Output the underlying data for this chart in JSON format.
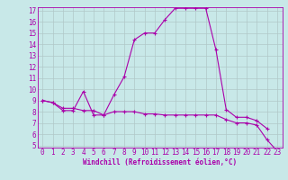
{
  "xlabel": "Windchill (Refroidissement éolien,°C)",
  "x": [
    0,
    1,
    2,
    3,
    4,
    5,
    6,
    7,
    8,
    9,
    10,
    11,
    12,
    13,
    14,
    15,
    16,
    17,
    18,
    19,
    20,
    21,
    22,
    23
  ],
  "curve1": [
    9.0,
    8.8,
    8.1,
    8.1,
    9.8,
    7.7,
    7.7,
    9.5,
    11.1,
    14.4,
    15.0,
    15.0,
    16.2,
    17.2,
    17.2,
    17.2,
    17.2,
    13.5,
    8.2,
    7.5,
    7.5,
    7.2,
    6.5,
    null
  ],
  "curve2": [
    9.0,
    8.8,
    8.3,
    8.3,
    8.1,
    8.1,
    7.7,
    8.0,
    8.0,
    8.0,
    7.8,
    7.8,
    7.7,
    7.7,
    7.7,
    7.7,
    7.7,
    7.7,
    7.3,
    7.0,
    7.0,
    6.8,
    5.5,
    4.5
  ],
  "color": "#aa00aa",
  "bg_color": "#c8e8e8",
  "grid_color": "#b0c8c8",
  "ylim": [
    4.8,
    17.3
  ],
  "xlim": [
    -0.5,
    23.5
  ],
  "yticks": [
    5,
    6,
    7,
    8,
    9,
    10,
    11,
    12,
    13,
    14,
    15,
    16,
    17
  ],
  "xticks": [
    0,
    1,
    2,
    3,
    4,
    5,
    6,
    7,
    8,
    9,
    10,
    11,
    12,
    13,
    14,
    15,
    16,
    17,
    18,
    19,
    20,
    21,
    22,
    23
  ],
  "tick_fontsize": 5.5,
  "xlabel_fontsize": 5.5,
  "linewidth": 0.8,
  "markersize": 2.5
}
